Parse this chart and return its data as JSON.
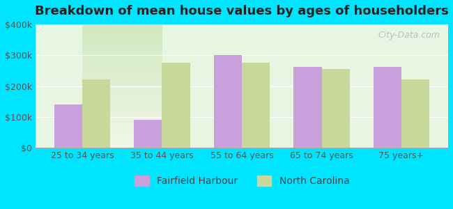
{
  "title": "Breakdown of mean house values by ages of householders",
  "categories": [
    "25 to 34 years",
    "35 to 44 years",
    "55 to 64 years",
    "65 to 74 years",
    "75 years+"
  ],
  "fairfield_values": [
    140000,
    90000,
    300000,
    262000,
    262000
  ],
  "nc_values": [
    222000,
    275000,
    275000,
    255000,
    222000
  ],
  "fairfield_color": "#c9a0dc",
  "nc_color": "#c8d89a",
  "background_outer": "#00e5ff",
  "background_inner_top": "#e8f5e9",
  "background_inner_bottom": "#d4edda",
  "ylim": [
    0,
    400000
  ],
  "yticks": [
    0,
    100000,
    200000,
    300000,
    400000
  ],
  "ytick_labels": [
    "$0",
    "$100k",
    "$200k",
    "$300k",
    "$400k"
  ],
  "legend_labels": [
    "Fairfield Harbour",
    "North Carolina"
  ],
  "bar_width": 0.35,
  "title_fontsize": 13,
  "tick_fontsize": 9,
  "legend_fontsize": 10
}
